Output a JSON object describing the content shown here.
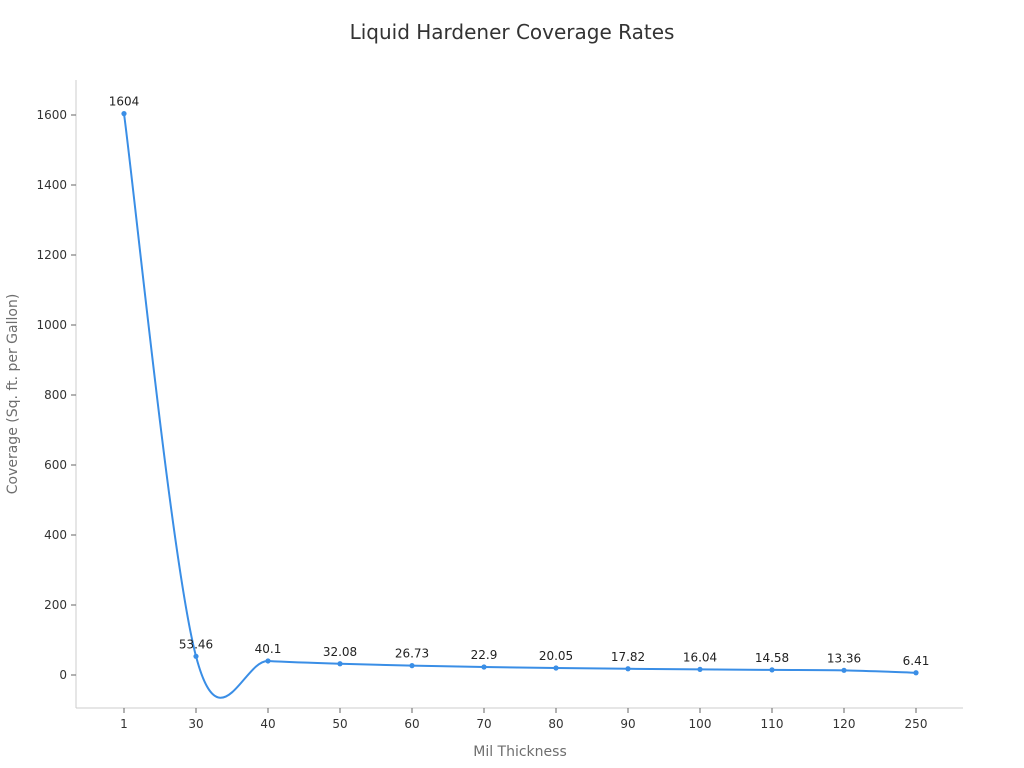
{
  "chart_data": {
    "type": "line",
    "title": "Liquid Hardener Coverage Rates",
    "xlabel": "Mil Thickness",
    "ylabel": "Coverage (Sq. ft. per Gallon)",
    "categories": [
      "1",
      "30",
      "40",
      "50",
      "60",
      "70",
      "80",
      "90",
      "100",
      "110",
      "120",
      "250"
    ],
    "series": [
      {
        "name": "Coverage",
        "values": [
          1604,
          53.46,
          40.1,
          32.08,
          26.73,
          22.9,
          20.05,
          17.82,
          16.04,
          14.58,
          13.36,
          6.41
        ],
        "labels": [
          "1604",
          "53.46",
          "40.1",
          "32.08",
          "26.73",
          "22.9",
          "20.05",
          "17.82",
          "16.04",
          "14.58",
          "13.36",
          "6.41"
        ],
        "color": "#3a8ee6"
      }
    ],
    "yticks": [
      0,
      200,
      400,
      600,
      800,
      1000,
      1200,
      1400,
      1600
    ],
    "ylim": [
      -95,
      1700
    ],
    "grid": false,
    "legend": "none",
    "smooth": true
  },
  "colors": {
    "line": "#3a8ee6",
    "axis": "#cccccc",
    "text": "#333333",
    "axis_title": "#6e6e6e"
  }
}
